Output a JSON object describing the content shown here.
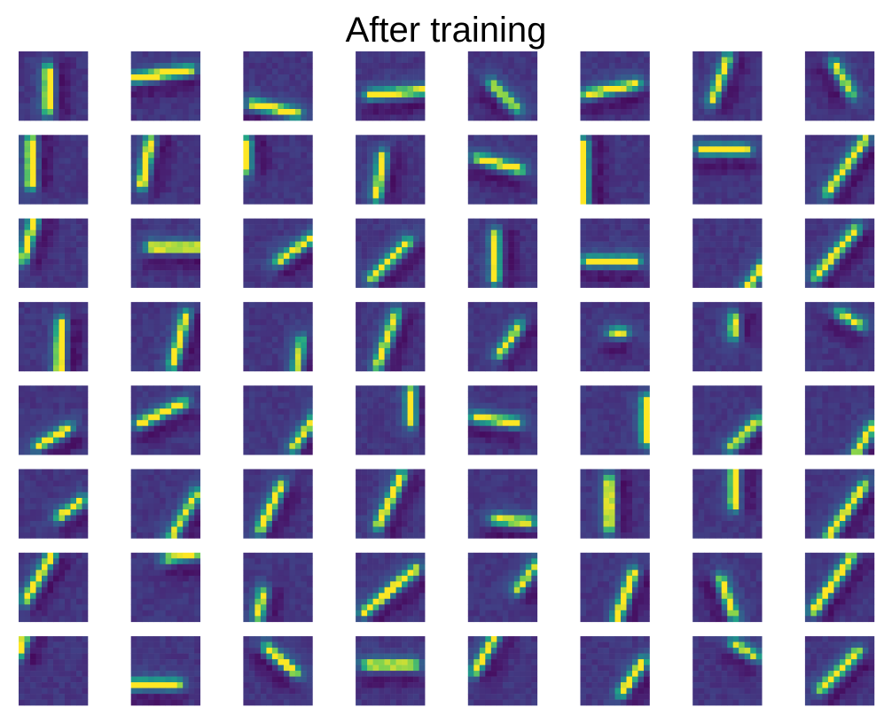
{
  "chart_data": {
    "type": "heatmap",
    "title": "After training",
    "grid_shape": [
      8,
      8
    ],
    "filter_size": [
      12,
      12
    ],
    "colormap": "viridis",
    "axes_visible": false,
    "filters": [
      [
        {
          "orientation_deg": 90,
          "center": [
            0.43,
            0.55
          ],
          "length": 0.55,
          "strength": 1.0
        },
        {
          "orientation_deg": 8,
          "center": [
            0.45,
            0.33
          ],
          "length": 0.75,
          "strength": 1.0
        },
        {
          "orientation_deg": -12,
          "center": [
            0.45,
            0.83
          ],
          "length": 0.6,
          "strength": 0.95
        },
        {
          "orientation_deg": 5,
          "center": [
            0.6,
            0.6
          ],
          "length": 0.75,
          "strength": 0.85
        },
        {
          "orientation_deg": -45,
          "center": [
            0.52,
            0.65
          ],
          "length": 0.45,
          "strength": 0.75
        },
        {
          "orientation_deg": 12,
          "center": [
            0.45,
            0.55
          ],
          "length": 0.7,
          "strength": 0.9
        },
        {
          "orientation_deg": 70,
          "center": [
            0.4,
            0.4
          ],
          "length": 0.6,
          "strength": 0.85
        },
        {
          "orientation_deg": -60,
          "center": [
            0.55,
            0.4
          ],
          "length": 0.45,
          "strength": 0.8
        }
      ],
      [
        {
          "orientation_deg": 90,
          "center": [
            0.18,
            0.4
          ],
          "length": 0.6,
          "strength": 1.0
        },
        {
          "orientation_deg": 80,
          "center": [
            0.22,
            0.4
          ],
          "length": 0.6,
          "strength": 1.0
        },
        {
          "orientation_deg": 90,
          "center": [
            0.05,
            0.3
          ],
          "length": 0.35,
          "strength": 0.9
        },
        {
          "orientation_deg": 82,
          "center": [
            0.35,
            0.6
          ],
          "length": 0.55,
          "strength": 0.9
        },
        {
          "orientation_deg": -15,
          "center": [
            0.45,
            0.42
          ],
          "length": 0.6,
          "strength": 0.9
        },
        {
          "orientation_deg": 90,
          "center": [
            0.05,
            0.55
          ],
          "length": 0.8,
          "strength": 0.95
        },
        {
          "orientation_deg": 0,
          "center": [
            0.45,
            0.22
          ],
          "length": 0.6,
          "strength": 0.9
        },
        {
          "orientation_deg": 55,
          "center": [
            0.6,
            0.45
          ],
          "length": 0.9,
          "strength": 0.85
        }
      ],
      [
        {
          "orientation_deg": 75,
          "center": [
            0.15,
            0.3
          ],
          "length": 0.55,
          "strength": 0.9
        },
        {
          "orientation_deg": 0,
          "center": [
            0.65,
            0.42
          ],
          "length": 0.7,
          "strength": 1.0
        },
        {
          "orientation_deg": 35,
          "center": [
            0.75,
            0.45
          ],
          "length": 0.55,
          "strength": 0.85
        },
        {
          "orientation_deg": 45,
          "center": [
            0.5,
            0.6
          ],
          "length": 0.7,
          "strength": 0.85
        },
        {
          "orientation_deg": 90,
          "center": [
            0.4,
            0.55
          ],
          "length": 0.6,
          "strength": 0.9
        },
        {
          "orientation_deg": 0,
          "center": [
            0.45,
            0.62
          ],
          "length": 0.65,
          "strength": 0.9
        },
        {
          "orientation_deg": 55,
          "center": [
            0.9,
            0.85
          ],
          "length": 0.35,
          "strength": 0.9
        },
        {
          "orientation_deg": 50,
          "center": [
            0.45,
            0.5
          ],
          "length": 0.85,
          "strength": 0.9
        }
      ],
      [
        {
          "orientation_deg": 88,
          "center": [
            0.6,
            0.65
          ],
          "length": 0.65,
          "strength": 1.0
        },
        {
          "orientation_deg": 75,
          "center": [
            0.7,
            0.55
          ],
          "length": 0.7,
          "strength": 0.9
        },
        {
          "orientation_deg": 80,
          "center": [
            0.8,
            0.8
          ],
          "length": 0.45,
          "strength": 0.75
        },
        {
          "orientation_deg": 70,
          "center": [
            0.45,
            0.55
          ],
          "length": 0.75,
          "strength": 0.85
        },
        {
          "orientation_deg": 55,
          "center": [
            0.6,
            0.55
          ],
          "length": 0.45,
          "strength": 0.8
        },
        {
          "orientation_deg": 0,
          "center": [
            0.55,
            0.45
          ],
          "length": 0.1,
          "strength": 0.85
        },
        {
          "orientation_deg": 90,
          "center": [
            0.6,
            0.35
          ],
          "length": 0.2,
          "strength": 0.9
        },
        {
          "orientation_deg": -30,
          "center": [
            0.65,
            0.25
          ],
          "length": 0.3,
          "strength": 0.8
        }
      ],
      [
        {
          "orientation_deg": 30,
          "center": [
            0.5,
            0.75
          ],
          "length": 0.45,
          "strength": 0.9
        },
        {
          "orientation_deg": 25,
          "center": [
            0.45,
            0.4
          ],
          "length": 0.65,
          "strength": 0.95
        },
        {
          "orientation_deg": 55,
          "center": [
            0.9,
            0.65
          ],
          "length": 0.55,
          "strength": 0.8
        },
        {
          "orientation_deg": 90,
          "center": [
            0.8,
            0.3
          ],
          "length": 0.4,
          "strength": 0.95
        },
        {
          "orientation_deg": -8,
          "center": [
            0.4,
            0.5
          ],
          "length": 0.55,
          "strength": 0.9
        },
        {
          "orientation_deg": 90,
          "center": [
            0.95,
            0.5
          ],
          "length": 0.55,
          "strength": 0.95
        },
        {
          "orientation_deg": 45,
          "center": [
            0.75,
            0.7
          ],
          "length": 0.5,
          "strength": 0.8
        },
        {
          "orientation_deg": 60,
          "center": [
            0.85,
            0.8
          ],
          "length": 0.45,
          "strength": 0.85
        }
      ],
      [
        {
          "orientation_deg": 35,
          "center": [
            0.75,
            0.58
          ],
          "length": 0.35,
          "strength": 0.9
        },
        {
          "orientation_deg": 60,
          "center": [
            0.75,
            0.7
          ],
          "length": 0.75,
          "strength": 0.8
        },
        {
          "orientation_deg": 65,
          "center": [
            0.4,
            0.55
          ],
          "length": 0.65,
          "strength": 0.95
        },
        {
          "orientation_deg": 65,
          "center": [
            0.5,
            0.45
          ],
          "length": 0.75,
          "strength": 0.9
        },
        {
          "orientation_deg": -5,
          "center": [
            0.65,
            0.75
          ],
          "length": 0.45,
          "strength": 0.9
        },
        {
          "orientation_deg": 90,
          "center": [
            0.42,
            0.5
          ],
          "length": 0.65,
          "strength": 1.0
        },
        {
          "orientation_deg": 90,
          "center": [
            0.6,
            0.25
          ],
          "length": 0.5,
          "strength": 1.0
        },
        {
          "orientation_deg": 55,
          "center": [
            0.6,
            0.6
          ],
          "length": 0.85,
          "strength": 0.9
        }
      ],
      [
        {
          "orientation_deg": 60,
          "center": [
            0.3,
            0.35
          ],
          "length": 0.7,
          "strength": 0.95
        },
        {
          "orientation_deg": 10,
          "center": [
            0.75,
            0.05
          ],
          "length": 0.4,
          "strength": 0.8
        },
        {
          "orientation_deg": 80,
          "center": [
            0.25,
            0.75
          ],
          "length": 0.3,
          "strength": 0.9
        },
        {
          "orientation_deg": 40,
          "center": [
            0.5,
            0.55
          ],
          "length": 0.9,
          "strength": 1.0
        },
        {
          "orientation_deg": 55,
          "center": [
            0.85,
            0.35
          ],
          "length": 0.4,
          "strength": 0.8
        },
        {
          "orientation_deg": 70,
          "center": [
            0.65,
            0.62
          ],
          "length": 0.65,
          "strength": 1.0
        },
        {
          "orientation_deg": -70,
          "center": [
            0.5,
            0.65
          ],
          "length": 0.5,
          "strength": 0.9
        },
        {
          "orientation_deg": 55,
          "center": [
            0.4,
            0.45
          ],
          "length": 0.9,
          "strength": 1.0
        }
      ],
      [
        {
          "orientation_deg": 70,
          "center": [
            0.05,
            0.12
          ],
          "length": 0.3,
          "strength": 0.9
        },
        {
          "orientation_deg": 0,
          "center": [
            0.3,
            0.7
          ],
          "length": 0.7,
          "strength": 0.95
        },
        {
          "orientation_deg": -40,
          "center": [
            0.55,
            0.35
          ],
          "length": 0.5,
          "strength": 0.95
        },
        {
          "orientation_deg": 0,
          "center": [
            0.5,
            0.42
          ],
          "length": 0.65,
          "strength": 0.95
        },
        {
          "orientation_deg": 60,
          "center": [
            0.25,
            0.25
          ],
          "length": 0.55,
          "strength": 0.9
        },
        {
          "orientation_deg": 55,
          "center": [
            0.75,
            0.6
          ],
          "length": 0.5,
          "strength": 0.9
        },
        {
          "orientation_deg": -30,
          "center": [
            0.75,
            0.2
          ],
          "length": 0.3,
          "strength": 0.8
        },
        {
          "orientation_deg": 45,
          "center": [
            0.5,
            0.5
          ],
          "length": 0.7,
          "strength": 1.0
        }
      ]
    ]
  }
}
